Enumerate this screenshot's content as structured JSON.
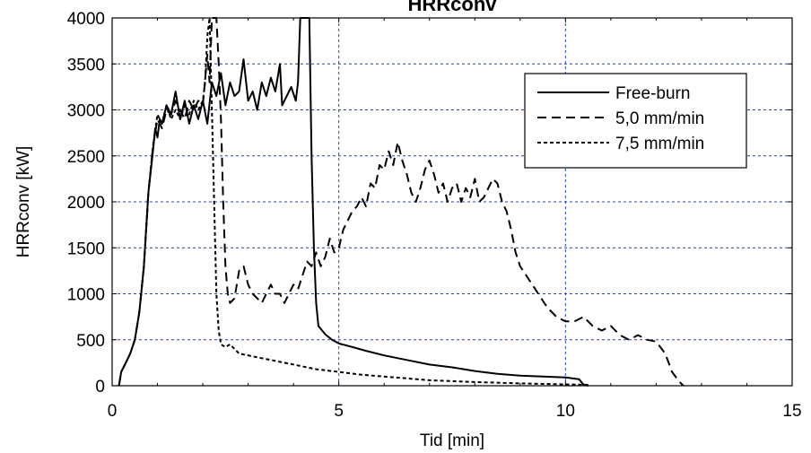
{
  "chart_data": {
    "type": "line",
    "title": "HRRconv",
    "xlabel": "Tid [min]",
    "ylabel": "HRRconv [kW]",
    "xlim": [
      0,
      15
    ],
    "ylim": [
      0,
      4000
    ],
    "xticks": [
      0,
      5,
      10,
      15
    ],
    "yticks": [
      0,
      500,
      1000,
      1500,
      2000,
      2500,
      3000,
      3500,
      4000
    ],
    "grid": true,
    "legend_position": "top-right",
    "series": [
      {
        "name": "Free-burn",
        "dash": "solid",
        "points": [
          [
            0.15,
            0
          ],
          [
            0.2,
            150
          ],
          [
            0.3,
            250
          ],
          [
            0.4,
            350
          ],
          [
            0.5,
            500
          ],
          [
            0.6,
            800
          ],
          [
            0.7,
            1300
          ],
          [
            0.8,
            2100
          ],
          [
            0.9,
            2550
          ],
          [
            0.95,
            2800
          ],
          [
            1.0,
            2700
          ],
          [
            1.05,
            2900
          ],
          [
            1.1,
            2850
          ],
          [
            1.2,
            3050
          ],
          [
            1.3,
            2950
          ],
          [
            1.4,
            3200
          ],
          [
            1.5,
            2900
          ],
          [
            1.6,
            3100
          ],
          [
            1.7,
            2850
          ],
          [
            1.8,
            3050
          ],
          [
            1.9,
            2900
          ],
          [
            2.0,
            3100
          ],
          [
            2.1,
            2850
          ],
          [
            2.2,
            3300
          ],
          [
            2.3,
            3150
          ],
          [
            2.4,
            3400
          ],
          [
            2.5,
            3050
          ],
          [
            2.6,
            3300
          ],
          [
            2.7,
            3150
          ],
          [
            2.8,
            3200
          ],
          [
            2.9,
            3550
          ],
          [
            3.0,
            3100
          ],
          [
            3.1,
            3200
          ],
          [
            3.2,
            3000
          ],
          [
            3.3,
            3300
          ],
          [
            3.4,
            3150
          ],
          [
            3.5,
            3350
          ],
          [
            3.6,
            3200
          ],
          [
            3.7,
            3500
          ],
          [
            3.75,
            3050
          ],
          [
            3.85,
            3150
          ],
          [
            3.95,
            3250
          ],
          [
            4.05,
            3100
          ],
          [
            4.1,
            3300
          ],
          [
            4.15,
            4000
          ],
          [
            4.35,
            4000
          ],
          [
            4.4,
            2500
          ],
          [
            4.45,
            1500
          ],
          [
            4.5,
            900
          ],
          [
            4.55,
            650
          ],
          [
            4.7,
            560
          ],
          [
            4.85,
            500
          ],
          [
            5.0,
            460
          ],
          [
            5.3,
            420
          ],
          [
            5.6,
            380
          ],
          [
            6.0,
            330
          ],
          [
            6.5,
            280
          ],
          [
            7.0,
            230
          ],
          [
            7.5,
            200
          ],
          [
            8.0,
            160
          ],
          [
            8.5,
            130
          ],
          [
            9.0,
            110
          ],
          [
            9.5,
            100
          ],
          [
            10.0,
            90
          ],
          [
            10.3,
            70
          ],
          [
            10.4,
            10
          ],
          [
            10.5,
            0
          ]
        ]
      },
      {
        "name": "5,0 mm/min",
        "dash": "long-dash",
        "points": [
          [
            0.15,
            0
          ],
          [
            0.2,
            150
          ],
          [
            0.3,
            250
          ],
          [
            0.4,
            350
          ],
          [
            0.5,
            500
          ],
          [
            0.6,
            800
          ],
          [
            0.7,
            1300
          ],
          [
            0.8,
            2100
          ],
          [
            0.9,
            2600
          ],
          [
            1.0,
            2900
          ],
          [
            1.1,
            2800
          ],
          [
            1.2,
            3000
          ],
          [
            1.3,
            2950
          ],
          [
            1.4,
            3100
          ],
          [
            1.5,
            3000
          ],
          [
            1.6,
            2900
          ],
          [
            1.7,
            3100
          ],
          [
            1.8,
            3000
          ],
          [
            1.9,
            3100
          ],
          [
            2.0,
            3050
          ],
          [
            2.1,
            3600
          ],
          [
            2.15,
            3300
          ],
          [
            2.2,
            4000
          ],
          [
            2.3,
            4000
          ],
          [
            2.35,
            3500
          ],
          [
            2.4,
            2900
          ],
          [
            2.45,
            2000
          ],
          [
            2.5,
            1300
          ],
          [
            2.55,
            1000
          ],
          [
            2.6,
            900
          ],
          [
            2.7,
            950
          ],
          [
            2.8,
            1250
          ],
          [
            2.9,
            1300
          ],
          [
            3.0,
            1100
          ],
          [
            3.1,
            1000
          ],
          [
            3.2,
            950
          ],
          [
            3.3,
            900
          ],
          [
            3.4,
            1000
          ],
          [
            3.5,
            1100
          ],
          [
            3.6,
            1000
          ],
          [
            3.7,
            1000
          ],
          [
            3.8,
            900
          ],
          [
            3.9,
            1000
          ],
          [
            4.0,
            1100
          ],
          [
            4.1,
            1050
          ],
          [
            4.2,
            1200
          ],
          [
            4.3,
            1350
          ],
          [
            4.4,
            1300
          ],
          [
            4.5,
            1450
          ],
          [
            4.6,
            1300
          ],
          [
            4.7,
            1400
          ],
          [
            4.8,
            1600
          ],
          [
            4.9,
            1450
          ],
          [
            5.0,
            1500
          ],
          [
            5.1,
            1700
          ],
          [
            5.2,
            1800
          ],
          [
            5.3,
            1900
          ],
          [
            5.4,
            1950
          ],
          [
            5.5,
            2050
          ],
          [
            5.6,
            1950
          ],
          [
            5.7,
            2200
          ],
          [
            5.8,
            2150
          ],
          [
            5.9,
            2400
          ],
          [
            6.0,
            2350
          ],
          [
            6.1,
            2550
          ],
          [
            6.2,
            2400
          ],
          [
            6.3,
            2650
          ],
          [
            6.4,
            2450
          ],
          [
            6.5,
            2300
          ],
          [
            6.6,
            2100
          ],
          [
            6.7,
            2000
          ],
          [
            6.8,
            2150
          ],
          [
            6.9,
            2350
          ],
          [
            7.0,
            2450
          ],
          [
            7.1,
            2300
          ],
          [
            7.2,
            2100
          ],
          [
            7.3,
            2200
          ],
          [
            7.4,
            2000
          ],
          [
            7.5,
            2150
          ],
          [
            7.6,
            2200
          ],
          [
            7.7,
            2000
          ],
          [
            7.8,
            2150
          ],
          [
            7.9,
            2050
          ],
          [
            8.0,
            2250
          ],
          [
            8.1,
            2000
          ],
          [
            8.2,
            2050
          ],
          [
            8.3,
            2150
          ],
          [
            8.4,
            2250
          ],
          [
            8.5,
            2200
          ],
          [
            8.6,
            2000
          ],
          [
            8.7,
            1900
          ],
          [
            8.8,
            1700
          ],
          [
            8.9,
            1450
          ],
          [
            9.0,
            1300
          ],
          [
            9.2,
            1150
          ],
          [
            9.4,
            1000
          ],
          [
            9.6,
            850
          ],
          [
            9.8,
            750
          ],
          [
            10.0,
            700
          ],
          [
            10.2,
            700
          ],
          [
            10.4,
            750
          ],
          [
            10.6,
            650
          ],
          [
            10.8,
            600
          ],
          [
            11.0,
            650
          ],
          [
            11.2,
            550
          ],
          [
            11.4,
            500
          ],
          [
            11.6,
            550
          ],
          [
            11.8,
            500
          ],
          [
            12.0,
            480
          ],
          [
            12.2,
            350
          ],
          [
            12.35,
            150
          ],
          [
            12.5,
            50
          ],
          [
            12.6,
            0
          ]
        ]
      },
      {
        "name": "7,5 mm/min",
        "dash": "dotted",
        "points": [
          [
            0.15,
            0
          ],
          [
            0.2,
            150
          ],
          [
            0.3,
            250
          ],
          [
            0.4,
            350
          ],
          [
            0.5,
            500
          ],
          [
            0.6,
            800
          ],
          [
            0.7,
            1300
          ],
          [
            0.8,
            2100
          ],
          [
            0.9,
            2600
          ],
          [
            1.0,
            2950
          ],
          [
            1.1,
            2850
          ],
          [
            1.2,
            3050
          ],
          [
            1.3,
            2900
          ],
          [
            1.4,
            3000
          ],
          [
            1.5,
            2900
          ],
          [
            1.6,
            3050
          ],
          [
            1.7,
            2950
          ],
          [
            1.8,
            3100
          ],
          [
            1.9,
            3000
          ],
          [
            2.0,
            3100
          ],
          [
            2.05,
            3300
          ],
          [
            2.1,
            3800
          ],
          [
            2.15,
            4000
          ],
          [
            2.2,
            3000
          ],
          [
            2.25,
            2000
          ],
          [
            2.3,
            1000
          ],
          [
            2.35,
            600
          ],
          [
            2.4,
            450
          ],
          [
            2.5,
            420
          ],
          [
            2.6,
            450
          ],
          [
            2.8,
            350
          ],
          [
            3.0,
            330
          ],
          [
            3.3,
            300
          ],
          [
            3.6,
            270
          ],
          [
            4.0,
            230
          ],
          [
            4.5,
            180
          ],
          [
            5.0,
            150
          ],
          [
            5.5,
            120
          ],
          [
            6.0,
            100
          ],
          [
            6.5,
            80
          ],
          [
            7.0,
            60
          ],
          [
            8.0,
            40
          ],
          [
            9.0,
            25
          ],
          [
            10.0,
            15
          ],
          [
            10.5,
            10
          ]
        ]
      }
    ],
    "colors": {
      "lines": "#000000",
      "grid": "#1f3fd6",
      "frame": "#000000"
    }
  }
}
